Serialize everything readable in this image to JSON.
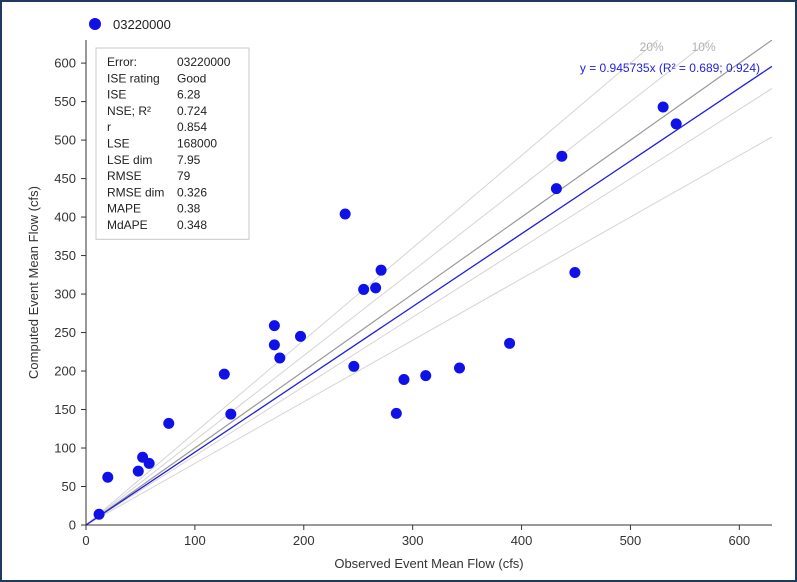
{
  "chart_data": {
    "type": "scatter",
    "legend": {
      "series_name": "03220000",
      "marker_color": "#1010e8",
      "placement": "top-left"
    },
    "xlabel": "Observed Event Mean Flow (cfs)",
    "ylabel": "Computed Event Mean Flow (cfs)",
    "xlim": [
      0,
      630
    ],
    "ylim": [
      0,
      630
    ],
    "xticks": [
      0,
      100,
      200,
      300,
      400,
      500,
      600
    ],
    "yticks": [
      0,
      50,
      100,
      150,
      200,
      250,
      300,
      350,
      400,
      450,
      500,
      550,
      600
    ],
    "grid": false,
    "series": [
      {
        "name": "03220000",
        "color": "#1010e8",
        "points": [
          {
            "x": 12,
            "y": 14
          },
          {
            "x": 20,
            "y": 62
          },
          {
            "x": 48,
            "y": 70
          },
          {
            "x": 52,
            "y": 88
          },
          {
            "x": 58,
            "y": 80
          },
          {
            "x": 76,
            "y": 132
          },
          {
            "x": 127,
            "y": 196
          },
          {
            "x": 133,
            "y": 144
          },
          {
            "x": 173,
            "y": 259
          },
          {
            "x": 173,
            "y": 234
          },
          {
            "x": 178,
            "y": 217
          },
          {
            "x": 197,
            "y": 245
          },
          {
            "x": 238,
            "y": 404
          },
          {
            "x": 246,
            "y": 206
          },
          {
            "x": 255,
            "y": 306
          },
          {
            "x": 266,
            "y": 308
          },
          {
            "x": 271,
            "y": 331
          },
          {
            "x": 285,
            "y": 145
          },
          {
            "x": 292,
            "y": 189
          },
          {
            "x": 312,
            "y": 194
          },
          {
            "x": 343,
            "y": 204
          },
          {
            "x": 389,
            "y": 236
          },
          {
            "x": 432,
            "y": 437
          },
          {
            "x": 437,
            "y": 479
          },
          {
            "x": 449,
            "y": 328
          },
          {
            "x": 530,
            "y": 543
          },
          {
            "x": 542,
            "y": 521
          }
        ]
      }
    ],
    "fit_line": {
      "slope": 0.945735,
      "color": "#1f1fe0",
      "label": "y = 0.945735x (R² = 0.689; 0.924)"
    },
    "reference_lines": {
      "identity_color": "#9a9a9a",
      "band_color": "#d4d4d4",
      "band_slopes": [
        1.2,
        1.1,
        0.9,
        0.8
      ],
      "band_labels": [
        "20%",
        "10%"
      ]
    },
    "stats_table": [
      {
        "label": "Error:",
        "value": "03220000"
      },
      {
        "label": "ISE rating",
        "value": "Good"
      },
      {
        "label": "ISE",
        "value": "6.28"
      },
      {
        "label": "NSE; R²",
        "value": "0.724"
      },
      {
        "label": "r",
        "value": "0.854"
      },
      {
        "label": "LSE",
        "value": "168000"
      },
      {
        "label": "LSE dim",
        "value": "7.95"
      },
      {
        "label": "RMSE",
        "value": "79"
      },
      {
        "label": "RMSE dim",
        "value": "0.326"
      },
      {
        "label": "MAPE",
        "value": "0.38"
      },
      {
        "label": "MdAPE",
        "value": "0.348"
      }
    ]
  }
}
